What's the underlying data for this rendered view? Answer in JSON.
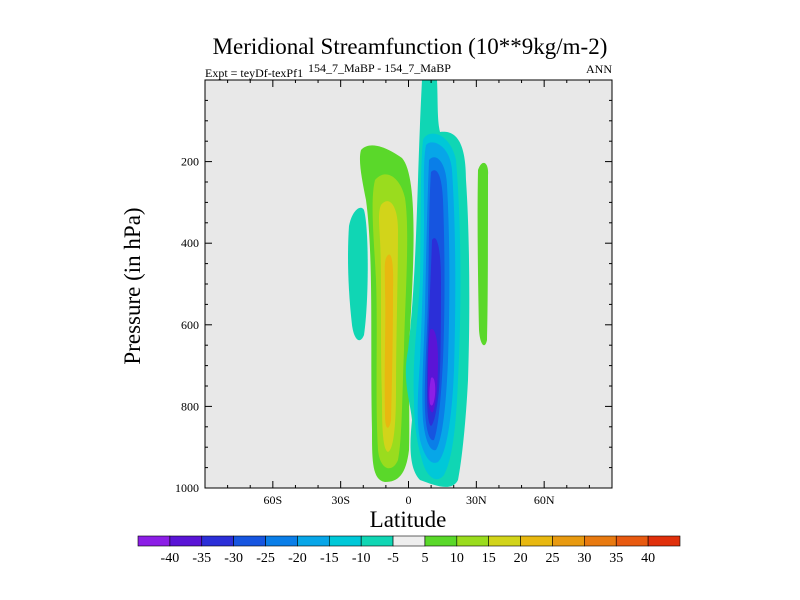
{
  "chart_data": {
    "type": "contour",
    "title": "Meridional Streamfunction (10**9kg/m-2)",
    "subtitle_left": "Expt = teyDf-texPf1",
    "subtitle_center": "154_7_MaBP - 154_7_MaBP",
    "subtitle_right": "ANN",
    "xlabel": "Latitude",
    "ylabel": "Pressure (in hPa)",
    "xlim": [
      -90,
      90
    ],
    "ylim": [
      1000,
      0
    ],
    "x_ticks": [
      {
        "value": -60,
        "label": "60S"
      },
      {
        "value": -30,
        "label": "30S"
      },
      {
        "value": 0,
        "label": "0"
      },
      {
        "value": 30,
        "label": "30N"
      },
      {
        "value": 60,
        "label": "60N"
      }
    ],
    "y_ticks": [
      {
        "value": 200,
        "label": "200"
      },
      {
        "value": 400,
        "label": "400"
      },
      {
        "value": 600,
        "label": "600"
      },
      {
        "value": 800,
        "label": "800"
      },
      {
        "value": 1000,
        "label": "1000"
      }
    ],
    "background_color": "#e8e8e8",
    "colorbar": {
      "labels": [
        "-40",
        "-35",
        "-30",
        "-25",
        "-20",
        "-15",
        "-10",
        "-5",
        "5",
        "10",
        "15",
        "20",
        "25",
        "30",
        "35",
        "40"
      ],
      "colors": [
        "#8c1ee6",
        "#5a14d6",
        "#2b2fd8",
        "#1655e0",
        "#0a7ee8",
        "#07a6e8",
        "#00c8d8",
        "#10d6b4",
        "#eeeeee",
        "#5ad82a",
        "#9adc1e",
        "#d2d41a",
        "#e8b810",
        "#e89a10",
        "#e87a10",
        "#e85a10",
        "#e0300c"
      ]
    },
    "features": [
      {
        "name": "northern-hadley-negative-cell",
        "lat_range": [
          3,
          22
        ],
        "pressure_range": [
          55,
          990
        ],
        "min_value": -40
      },
      {
        "name": "southern-hadley-positive-cell",
        "lat_range": [
          -16,
          -1
        ],
        "pressure_range": [
          150,
          985
        ],
        "max_value": 20
      },
      {
        "name": "southern-weak-cell",
        "lat_range": [
          -26,
          -20
        ],
        "pressure_range": [
          295,
          625
        ],
        "value": -5
      },
      {
        "name": "northern-weak-positive-cell",
        "lat_range": [
          31,
          35
        ],
        "pressure_range": [
          190,
          640
        ],
        "value": 5
      }
    ]
  }
}
